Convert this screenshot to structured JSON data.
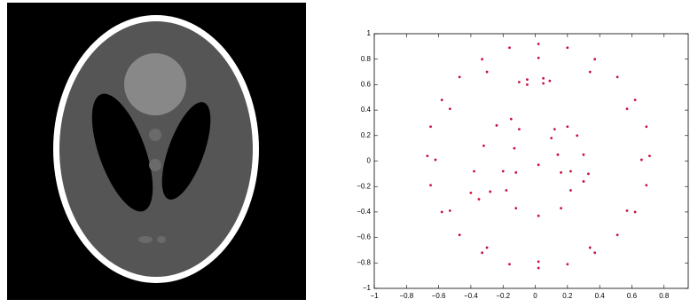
{
  "chart_data": {
    "type": "scatter",
    "color": "#c8103e",
    "xlim": [
      -1,
      0.95
    ],
    "ylim": [
      -1,
      1
    ],
    "xticks": [
      {
        "value": -1,
        "label": "−1"
      },
      {
        "value": -0.8,
        "label": "−0.8"
      },
      {
        "value": -0.6,
        "label": "−0.6"
      },
      {
        "value": -0.4,
        "label": "−0.4"
      },
      {
        "value": -0.2,
        "label": "−0.2"
      },
      0,
      0.2,
      0.4,
      0.6,
      0.8
    ],
    "yticks": [
      {
        "value": -1,
        "label": "−1"
      },
      {
        "value": -0.8,
        "label": "−0.8"
      },
      {
        "value": -0.6,
        "label": "−0.6"
      },
      {
        "value": -0.4,
        "label": "−0.4"
      },
      {
        "value": -0.2,
        "label": "−0.2"
      },
      0,
      0.2,
      0.4,
      0.6,
      0.8,
      1
    ],
    "x": [
      0.71,
      0.69,
      0.62,
      0.51,
      0.37,
      0.2,
      0.02,
      -0.16,
      -0.33,
      -0.47,
      -0.58,
      -0.65,
      -0.67,
      -0.65,
      -0.58,
      -0.47,
      -0.33,
      -0.16,
      0.02,
      0.2,
      0.37,
      0.51,
      0.62,
      0.69,
      0.66,
      0.57,
      0.34,
      0.02,
      -0.3,
      -0.53,
      -0.62,
      -0.53,
      -0.3,
      0.02,
      0.34,
      0.57,
      -0.15,
      -0.1,
      -0.13,
      -0.2,
      -0.28,
      -0.35,
      -0.4,
      -0.38,
      -0.32,
      -0.24,
      0.12,
      0.2,
      0.26,
      0.3,
      0.33,
      0.3,
      0.22,
      0.14,
      0.1,
      0.22,
      0.16,
      0.02,
      -0.12,
      -0.18,
      -0.12,
      0.02,
      0.16,
      -0.1,
      -0.05,
      0.05,
      0.09,
      0.05,
      -0.05
    ],
    "y": [
      0.04,
      0.27,
      0.48,
      0.66,
      0.8,
      0.89,
      0.92,
      0.89,
      0.8,
      0.66,
      0.48,
      0.27,
      0.04,
      -0.19,
      -0.4,
      -0.58,
      -0.72,
      -0.81,
      -0.84,
      -0.81,
      -0.72,
      -0.58,
      -0.4,
      -0.19,
      0.01,
      0.41,
      0.7,
      0.81,
      0.7,
      0.41,
      0.01,
      -0.39,
      -0.68,
      -0.79,
      -0.68,
      -0.39,
      0.33,
      0.25,
      0.1,
      -0.08,
      -0.24,
      -0.3,
      -0.25,
      -0.08,
      0.12,
      0.28,
      0.25,
      0.27,
      0.2,
      0.05,
      -0.1,
      -0.16,
      -0.08,
      0.05,
      0.18,
      -0.23,
      -0.37,
      -0.43,
      -0.37,
      -0.23,
      -0.09,
      -0.03,
      -0.09,
      0.62,
      0.6,
      0.61,
      0.63,
      0.65,
      0.64
    ]
  }
}
